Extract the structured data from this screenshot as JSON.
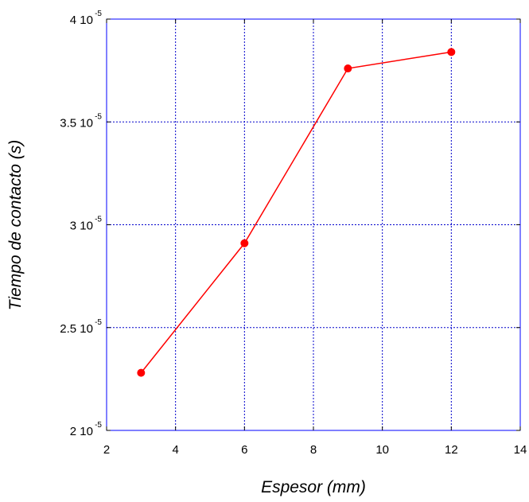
{
  "chart_data": {
    "type": "line",
    "title": "",
    "xlabel": "Espesor (mm)",
    "ylabel": "Tiempo de contacto (s)",
    "x": [
      3,
      6,
      9,
      12
    ],
    "series": [
      {
        "values": [
          2.28e-05,
          2.91e-05,
          3.76e-05,
          3.84e-05
        ],
        "color": "#ff0000"
      }
    ],
    "xlim": [
      2,
      14
    ],
    "ylim": [
      2e-05,
      4e-05
    ],
    "xticks": [
      "2",
      "4",
      "6",
      "8",
      "10",
      "12",
      "14"
    ],
    "yticks": [
      {
        "mantissa": "2",
        "base": "10",
        "exponent": "-5"
      },
      {
        "mantissa": "2.5",
        "base": "10",
        "exponent": "-5"
      },
      {
        "mantissa": "3",
        "base": "10",
        "exponent": "-5"
      },
      {
        "mantissa": "3.5",
        "base": "10",
        "exponent": "-5"
      },
      {
        "mantissa": "4",
        "base": "10",
        "exponent": "-5"
      }
    ],
    "grid": true,
    "grid_color": "#0000cc",
    "frame_color": "#0000ff",
    "marker": "circle"
  }
}
